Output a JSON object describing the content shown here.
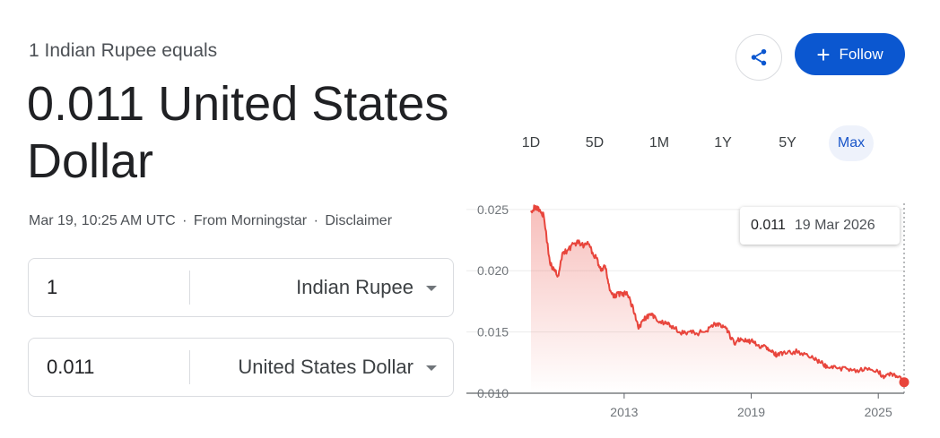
{
  "header": {
    "subtitle": "1 Indian Rupee equals",
    "result_value": "0.011",
    "result_currency": "United States Dollar",
    "timestamp": "Mar 19, 10:25 AM UTC",
    "source": "From Morningstar",
    "disclaimer": "Disclaimer",
    "separator": "·"
  },
  "actions": {
    "share_icon": "share-icon",
    "follow_label": "Follow",
    "follow_icon": "+"
  },
  "converter": [
    {
      "amount": "1",
      "currency": "Indian Rupee"
    },
    {
      "amount": "0.011",
      "currency": "United States Dollar"
    }
  ],
  "ranges": [
    {
      "label": "1D",
      "active": false
    },
    {
      "label": "5D",
      "active": false
    },
    {
      "label": "1M",
      "active": false
    },
    {
      "label": "1Y",
      "active": false
    },
    {
      "label": "5Y",
      "active": false
    },
    {
      "label": "Max",
      "active": true
    }
  ],
  "tooltip": {
    "value": "0.011",
    "date": "19 Mar 2026"
  },
  "colors": {
    "accent": "#0b57d0",
    "line": "#e8453c"
  },
  "chart_data": {
    "type": "area",
    "ylim": [
      0.01,
      0.0255
    ],
    "xlim": [
      2008.6,
      2026.22
    ],
    "yticks": [
      "0.025",
      "0.020",
      "0.015",
      "0.010"
    ],
    "xticks": [
      "2013",
      "2019",
      "2025"
    ],
    "series": [
      {
        "x": [
          2008.6,
          2008.8,
          2009.0,
          2009.2,
          2009.5,
          2009.7,
          2009.9,
          2010.1,
          2010.3,
          2010.6,
          2010.9,
          2011.1,
          2011.3,
          2011.5,
          2011.7,
          2011.9,
          2012.1,
          2012.3,
          2012.5,
          2012.7,
          2012.9,
          2013.1,
          2013.3,
          2013.5,
          2013.7,
          2013.9,
          2014.2,
          2014.5,
          2014.9,
          2015.2,
          2015.6,
          2016.0,
          2016.4,
          2016.8,
          2017.1,
          2017.4,
          2017.7,
          2017.9,
          2018.2,
          2018.5,
          2018.8,
          2019.0,
          2019.3,
          2019.7,
          2020.0,
          2020.2,
          2020.5,
          2021.0,
          2021.5,
          2022.0,
          2022.3,
          2022.6,
          2023.0,
          2023.5,
          2024.0,
          2024.5,
          2025.0,
          2025.3,
          2025.6,
          2025.9,
          2026.22
        ],
        "y": [
          0.0249,
          0.0252,
          0.025,
          0.0245,
          0.0206,
          0.02,
          0.0196,
          0.0215,
          0.0216,
          0.0222,
          0.0223,
          0.022,
          0.0222,
          0.0215,
          0.021,
          0.02,
          0.0204,
          0.0186,
          0.0178,
          0.0182,
          0.018,
          0.0182,
          0.0175,
          0.0165,
          0.0153,
          0.016,
          0.0164,
          0.0161,
          0.0157,
          0.0155,
          0.015,
          0.015,
          0.0149,
          0.015,
          0.0155,
          0.0157,
          0.0154,
          0.015,
          0.014,
          0.0145,
          0.0142,
          0.0143,
          0.0139,
          0.0138,
          0.0135,
          0.013,
          0.0133,
          0.0134,
          0.0133,
          0.0127,
          0.0125,
          0.0121,
          0.0121,
          0.012,
          0.0119,
          0.0119,
          0.0117,
          0.0114,
          0.0116,
          0.0113,
          0.0109
        ]
      }
    ]
  }
}
